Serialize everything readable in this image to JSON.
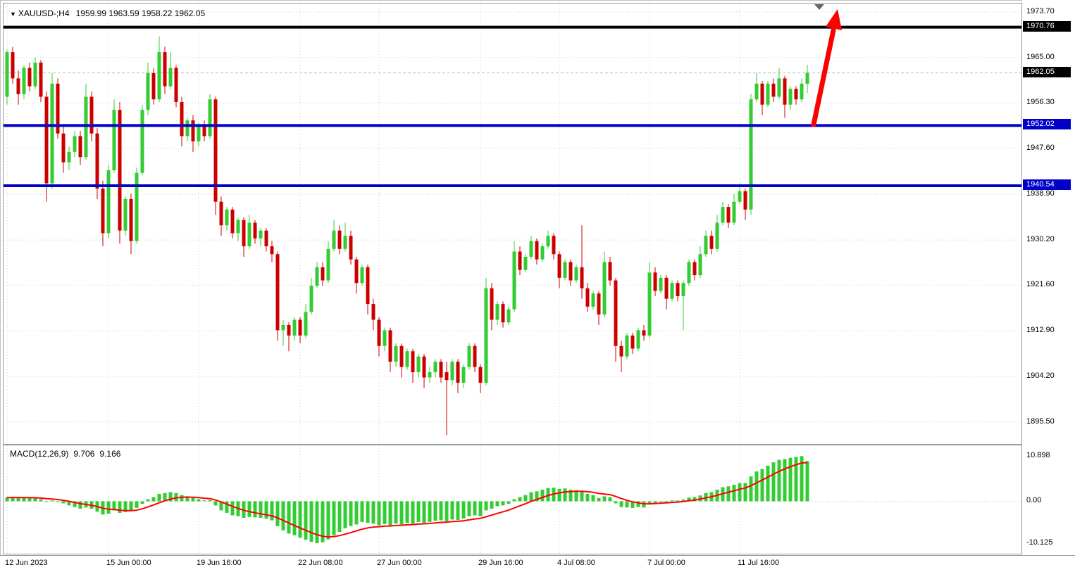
{
  "window": {
    "background": "#ffffff"
  },
  "symbol_info": {
    "dropdown_icon": "▼",
    "symbol": "XAUUSD-;H4",
    "ohlc": "1959.99 1963.59 1958.22 1962.05"
  },
  "chart_data": {
    "type": "candlestick",
    "symbol": "XAUUSD",
    "timeframe": "H4",
    "title": "XAUUSD-;H4",
    "ohlc_display": {
      "open": "1959.99",
      "high": "1963.59",
      "low": "1958.22",
      "close": "1962.05"
    },
    "price_axis_ticks": [
      "1973.70",
      "1965.00",
      "1956.30",
      "1947.60",
      "1938.90",
      "1930.20",
      "1921.60",
      "1912.90",
      "1904.20",
      "1895.50"
    ],
    "price_range": [
      1891.6,
      1975.0
    ],
    "levels": [
      {
        "price": 1970.76,
        "label": "1970.76",
        "color": "#000000",
        "type": "resistance"
      },
      {
        "price": 1952.02,
        "label": "1952.02",
        "color": "#0000c8",
        "type": "support"
      },
      {
        "price": 1940.54,
        "label": "1940.54",
        "color": "#0000c8",
        "type": "support"
      }
    ],
    "current_price": {
      "value": 1962.05,
      "label": "1962.05",
      "badge_color": "#000000"
    },
    "trend_arrow": {
      "direction": "up",
      "color": "#ff0000"
    },
    "top_marker": {
      "glyph": "▼",
      "color": "#5a6672"
    },
    "time_labels": [
      {
        "label": "12 Jun 2023",
        "bar": 0
      },
      {
        "label": "15 Jun 00:00",
        "bar": 18
      },
      {
        "label": "19 Jun 16:00",
        "bar": 34
      },
      {
        "label": "22 Jun 08:00",
        "bar": 52
      },
      {
        "label": "27 Jun 00:00",
        "bar": 66
      },
      {
        "label": "29 Jun 16:00",
        "bar": 84
      },
      {
        "label": "4 Jul 08:00",
        "bar": 98
      },
      {
        "label": "7 Jul 00:00",
        "bar": 114
      },
      {
        "label": "11 Jul 16:00",
        "bar": 130
      }
    ],
    "candles": [
      [
        1957.5,
        1966.5,
        1956.0,
        1966.0
      ],
      [
        1966.0,
        1967.0,
        1960.0,
        1961.0
      ],
      [
        1961.0,
        1962.5,
        1956.0,
        1958.0
      ],
      [
        1958.0,
        1963.5,
        1957.0,
        1963.0
      ],
      [
        1963.0,
        1964.0,
        1958.5,
        1959.5
      ],
      [
        1959.5,
        1965.0,
        1959.0,
        1964.0
      ],
      [
        1964.0,
        1964.5,
        1956.5,
        1957.5
      ],
      [
        1957.5,
        1958.5,
        1937.5,
        1941.0
      ],
      [
        1941.0,
        1962.0,
        1940.0,
        1960.0
      ],
      [
        1960.0,
        1961.0,
        1949.5,
        1950.5
      ],
      [
        1950.5,
        1952.0,
        1943.0,
        1945.0
      ],
      [
        1945.0,
        1948.0,
        1943.5,
        1947.0
      ],
      [
        1947.0,
        1951.0,
        1946.0,
        1950.0
      ],
      [
        1950.0,
        1951.0,
        1944.5,
        1946.0
      ],
      [
        1946.0,
        1960.0,
        1945.5,
        1957.5
      ],
      [
        1957.5,
        1958.5,
        1949.0,
        1950.5
      ],
      [
        1950.5,
        1951.5,
        1938.0,
        1940.0
      ],
      [
        1940.0,
        1941.5,
        1929.0,
        1931.5
      ],
      [
        1931.5,
        1944.5,
        1930.5,
        1943.5
      ],
      [
        1943.5,
        1957.0,
        1943.0,
        1955.0
      ],
      [
        1955.0,
        1956.5,
        1929.5,
        1932.0
      ],
      [
        1932.0,
        1938.5,
        1931.0,
        1938.0
      ],
      [
        1938.0,
        1939.0,
        1927.5,
        1930.0
      ],
      [
        1930.0,
        1944.0,
        1929.5,
        1943.0
      ],
      [
        1943.0,
        1956.0,
        1942.5,
        1955.0
      ],
      [
        1955.0,
        1964.0,
        1954.0,
        1962.0
      ],
      [
        1962.0,
        1963.0,
        1956.0,
        1957.0
      ],
      [
        1957.0,
        1969.0,
        1956.5,
        1966.0
      ],
      [
        1966.0,
        1967.0,
        1958.0,
        1959.5
      ],
      [
        1959.5,
        1966.0,
        1959.0,
        1963.0
      ],
      [
        1963.0,
        1963.5,
        1955.5,
        1956.5
      ],
      [
        1956.5,
        1957.5,
        1948.0,
        1950.0
      ],
      [
        1950.0,
        1953.5,
        1949.0,
        1953.0
      ],
      [
        1953.0,
        1954.0,
        1947.0,
        1949.0
      ],
      [
        1949.0,
        1952.5,
        1948.0,
        1952.0
      ],
      [
        1952.0,
        1953.0,
        1949.0,
        1950.0
      ],
      [
        1950.0,
        1958.0,
        1949.5,
        1957.0
      ],
      [
        1957.0,
        1957.5,
        1935.0,
        1937.5
      ],
      [
        1937.5,
        1938.5,
        1931.0,
        1933.0
      ],
      [
        1933.0,
        1936.5,
        1932.0,
        1936.0
      ],
      [
        1936.0,
        1936.5,
        1930.5,
        1931.5
      ],
      [
        1931.5,
        1934.5,
        1930.0,
        1934.0
      ],
      [
        1934.0,
        1934.5,
        1927.0,
        1929.0
      ],
      [
        1929.0,
        1935.0,
        1928.5,
        1933.5
      ],
      [
        1933.5,
        1934.0,
        1929.5,
        1930.5
      ],
      [
        1930.5,
        1932.5,
        1929.0,
        1932.0
      ],
      [
        1932.0,
        1932.5,
        1928.0,
        1929.0
      ],
      [
        1929.0,
        1930.0,
        1926.0,
        1927.5
      ],
      [
        1927.5,
        1928.0,
        1911.0,
        1913.0
      ],
      [
        1913.0,
        1915.0,
        1910.0,
        1914.0
      ],
      [
        1914.0,
        1914.5,
        1909.0,
        1912.0
      ],
      [
        1912.0,
        1915.5,
        1911.0,
        1915.0
      ],
      [
        1915.0,
        1915.5,
        1910.5,
        1912.0
      ],
      [
        1912.0,
        1918.0,
        1911.5,
        1916.5
      ],
      [
        1916.5,
        1923.0,
        1916.0,
        1921.5
      ],
      [
        1921.5,
        1926.0,
        1921.0,
        1925.0
      ],
      [
        1925.0,
        1926.0,
        1921.5,
        1922.5
      ],
      [
        1922.5,
        1930.0,
        1922.0,
        1928.5
      ],
      [
        1928.5,
        1934.0,
        1928.0,
        1932.0
      ],
      [
        1932.0,
        1933.0,
        1927.5,
        1928.5
      ],
      [
        1928.5,
        1933.5,
        1928.0,
        1931.0
      ],
      [
        1931.0,
        1932.0,
        1925.5,
        1926.5
      ],
      [
        1926.5,
        1927.0,
        1920.0,
        1922.0
      ],
      [
        1922.0,
        1925.5,
        1921.5,
        1925.0
      ],
      [
        1925.0,
        1925.5,
        1916.0,
        1918.0
      ],
      [
        1918.0,
        1919.0,
        1913.0,
        1915.0
      ],
      [
        1915.0,
        1915.5,
        1908.0,
        1910.0
      ],
      [
        1910.0,
        1913.5,
        1909.0,
        1913.0
      ],
      [
        1913.0,
        1913.5,
        1905.0,
        1907.0
      ],
      [
        1907.0,
        1910.5,
        1906.0,
        1910.0
      ],
      [
        1910.0,
        1910.5,
        1904.0,
        1906.0
      ],
      [
        1906.0,
        1909.5,
        1905.5,
        1909.0
      ],
      [
        1909.0,
        1909.5,
        1903.0,
        1905.0
      ],
      [
        1905.0,
        1908.5,
        1904.0,
        1908.0
      ],
      [
        1908.0,
        1908.5,
        1902.0,
        1904.0
      ],
      [
        1904.0,
        1906.0,
        1903.0,
        1905.0
      ],
      [
        1905.0,
        1907.5,
        1904.0,
        1907.0
      ],
      [
        1907.0,
        1907.5,
        1903.0,
        1904.0
      ],
      [
        1905.0,
        1907.0,
        1893.0,
        1903.5
      ],
      [
        1903.5,
        1907.5,
        1902.5,
        1907.0
      ],
      [
        1907.0,
        1907.5,
        1901.0,
        1903.0
      ],
      [
        1903.0,
        1906.5,
        1902.0,
        1906.0
      ],
      [
        1906.0,
        1910.5,
        1905.5,
        1910.0
      ],
      [
        1910.0,
        1910.5,
        1905.0,
        1906.0
      ],
      [
        1906.0,
        1906.5,
        1901.0,
        1903.0
      ],
      [
        1903.0,
        1923.0,
        1902.5,
        1921.0
      ],
      [
        1921.0,
        1922.0,
        1913.0,
        1915.0
      ],
      [
        1915.0,
        1918.5,
        1914.0,
        1918.0
      ],
      [
        1918.0,
        1918.5,
        1913.5,
        1914.5
      ],
      [
        1914.5,
        1917.5,
        1914.0,
        1917.0
      ],
      [
        1917.0,
        1930.0,
        1916.5,
        1928.0
      ],
      [
        1928.0,
        1929.0,
        1923.5,
        1924.5
      ],
      [
        1924.5,
        1927.5,
        1924.0,
        1927.0
      ],
      [
        1927.0,
        1931.0,
        1926.5,
        1930.0
      ],
      [
        1930.0,
        1930.5,
        1925.5,
        1926.5
      ],
      [
        1926.5,
        1929.5,
        1926.0,
        1929.0
      ],
      [
        1929.0,
        1932.0,
        1928.5,
        1931.0
      ],
      [
        1931.0,
        1931.5,
        1926.5,
        1927.5
      ],
      [
        1927.5,
        1928.0,
        1921.0,
        1923.0
      ],
      [
        1923.0,
        1926.5,
        1922.5,
        1926.0
      ],
      [
        1926.0,
        1926.5,
        1921.5,
        1922.5
      ],
      [
        1922.5,
        1925.5,
        1922.0,
        1925.0
      ],
      [
        1925.0,
        1933.0,
        1919.0,
        1921.0
      ],
      [
        1921.0,
        1922.0,
        1916.5,
        1917.5
      ],
      [
        1917.5,
        1920.5,
        1917.0,
        1920.0
      ],
      [
        1920.0,
        1920.5,
        1914.0,
        1916.0
      ],
      [
        1916.0,
        1928.0,
        1915.5,
        1926.0
      ],
      [
        1926.0,
        1927.0,
        1921.5,
        1922.5
      ],
      [
        1922.5,
        1923.0,
        1907.0,
        1910.0
      ],
      [
        1910.0,
        1911.0,
        1905.0,
        1908.0
      ],
      [
        1908.0,
        1912.5,
        1907.5,
        1912.0
      ],
      [
        1912.0,
        1912.5,
        1908.5,
        1909.5
      ],
      [
        1909.5,
        1913.5,
        1909.0,
        1913.0
      ],
      [
        1913.0,
        1914.0,
        1911.0,
        1912.0
      ],
      [
        1912.0,
        1926.0,
        1911.5,
        1924.0
      ],
      [
        1924.0,
        1925.0,
        1919.5,
        1920.5
      ],
      [
        1920.5,
        1923.5,
        1920.0,
        1923.0
      ],
      [
        1923.0,
        1923.5,
        1917.0,
        1919.0
      ],
      [
        1919.0,
        1922.5,
        1918.5,
        1922.0
      ],
      [
        1922.0,
        1922.5,
        1918.5,
        1919.5
      ],
      [
        1919.5,
        1922.5,
        1913.0,
        1922.0
      ],
      [
        1922.0,
        1926.5,
        1921.5,
        1926.0
      ],
      [
        1926.0,
        1926.5,
        1922.5,
        1923.5
      ],
      [
        1923.5,
        1929.0,
        1923.0,
        1927.5
      ],
      [
        1927.5,
        1932.0,
        1927.0,
        1931.0
      ],
      [
        1931.0,
        1932.0,
        1927.5,
        1928.5
      ],
      [
        1928.5,
        1935.0,
        1928.0,
        1933.5
      ],
      [
        1933.5,
        1937.5,
        1933.0,
        1936.5
      ],
      [
        1936.5,
        1937.0,
        1932.5,
        1933.5
      ],
      [
        1933.5,
        1939.0,
        1933.0,
        1937.5
      ],
      [
        1937.5,
        1941.0,
        1937.0,
        1939.5
      ],
      [
        1939.5,
        1940.0,
        1934.0,
        1936.0
      ],
      [
        1936.0,
        1958.0,
        1935.0,
        1957.0
      ],
      [
        1957.0,
        1962.0,
        1956.5,
        1960.0
      ],
      [
        1960.0,
        1960.5,
        1954.0,
        1956.0
      ],
      [
        1956.0,
        1960.5,
        1955.5,
        1960.0
      ],
      [
        1960.0,
        1961.0,
        1956.5,
        1957.5
      ],
      [
        1957.5,
        1963.0,
        1957.0,
        1961.0
      ],
      [
        1961.0,
        1961.5,
        1953.5,
        1956.0
      ],
      [
        1956.0,
        1959.5,
        1955.0,
        1959.0
      ],
      [
        1959.0,
        1959.5,
        1956.0,
        1957.0
      ],
      [
        1957.0,
        1961.0,
        1956.5,
        1960.0
      ],
      [
        1959.99,
        1963.59,
        1958.22,
        1962.05
      ]
    ],
    "macd": {
      "label": "MACD(12,26,9)",
      "main_value": "9.706",
      "signal_value": "9.166",
      "axis_ticks": [
        "10.898",
        "0.00",
        "-10.125"
      ],
      "value_range": [
        -12.9,
        13.5
      ],
      "signal_period": 9,
      "histogram": [
        0.9,
        1.0,
        0.9,
        0.8,
        0.8,
        0.7,
        0.5,
        0.0,
        0.2,
        0.0,
        -0.5,
        -1.0,
        -1.4,
        -1.8,
        -1.5,
        -1.8,
        -2.5,
        -3.2,
        -3.0,
        -2.2,
        -2.8,
        -2.6,
        -2.4,
        -1.6,
        -0.6,
        0.5,
        1.0,
        1.8,
        2.0,
        2.2,
        2.0,
        1.5,
        1.2,
        0.8,
        0.5,
        0.2,
        0.3,
        -1.0,
        -2.2,
        -2.8,
        -3.4,
        -3.6,
        -4.0,
        -3.8,
        -3.9,
        -4.0,
        -4.2,
        -4.6,
        -6.0,
        -7.0,
        -7.8,
        -8.2,
        -8.8,
        -9.3,
        -9.8,
        -10.125,
        -9.9,
        -9.2,
        -8.2,
        -7.4,
        -6.5,
        -6.0,
        -5.6,
        -5.0,
        -5.2,
        -5.4,
        -5.8,
        -5.5,
        -5.8,
        -5.4,
        -5.6,
        -5.2,
        -5.4,
        -5.0,
        -5.2,
        -5.0,
        -4.7,
        -4.6,
        -4.8,
        -4.4,
        -4.5,
        -4.2,
        -3.6,
        -3.4,
        -3.6,
        -2.2,
        -1.8,
        -1.2,
        -1.0,
        -0.6,
        0.5,
        1.0,
        1.5,
        2.2,
        2.4,
        2.8,
        3.2,
        3.3,
        3.0,
        3.1,
        2.8,
        2.7,
        2.5,
        1.8,
        1.5,
        0.8,
        1.2,
        1.0,
        -0.5,
        -1.4,
        -1.5,
        -1.6,
        -1.4,
        -1.5,
        -0.6,
        -0.4,
        0.0,
        -0.2,
        0.2,
        0.2,
        0.4,
        0.9,
        1.0,
        1.4,
        2.0,
        2.2,
        2.8,
        3.4,
        3.6,
        4.0,
        4.4,
        4.4,
        6.0,
        7.2,
        7.8,
        8.6,
        9.4,
        10.0,
        10.2,
        10.5,
        10.7,
        10.898,
        9.706
      ]
    },
    "colors": {
      "bull": "#33cc33",
      "bear": "#cc0000",
      "macd_hist": "#33cc33",
      "signal": "#ff0000",
      "grid": "#cfcfcf",
      "arrow": "#ff0000"
    }
  }
}
